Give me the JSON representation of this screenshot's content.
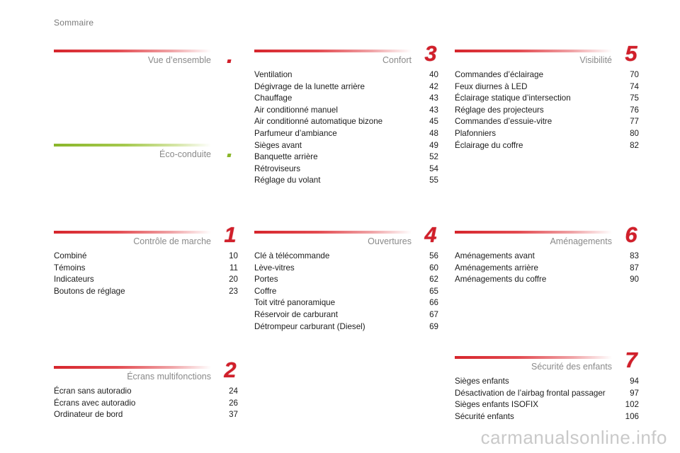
{
  "page": {
    "title": "Sommaire"
  },
  "sections": {
    "vue": {
      "title": "Vue d’ensemble"
    },
    "eco": {
      "title": "Éco-conduite"
    },
    "confort": {
      "title": "Confort",
      "number": "3",
      "entries": [
        {
          "label": "Ventilation",
          "page": "40"
        },
        {
          "label": "Dégivrage de la lunette arrière",
          "page": "42"
        },
        {
          "label": "Chauffage",
          "page": "43"
        },
        {
          "label": "Air conditionné manuel",
          "page": "43"
        },
        {
          "label": "Air conditionné automatique bizone",
          "page": "45"
        },
        {
          "label": "Parfumeur d’ambiance",
          "page": "48"
        },
        {
          "label": "Sièges avant",
          "page": "49"
        },
        {
          "label": "Banquette arrière",
          "page": "52"
        },
        {
          "label": "Rétroviseurs",
          "page": "54"
        },
        {
          "label": "Réglage du volant",
          "page": "55"
        }
      ]
    },
    "visibilite": {
      "title": "Visibilité",
      "number": "5",
      "entries": [
        {
          "label": "Commandes d’éclairage",
          "page": "70"
        },
        {
          "label": "Feux diurnes à LED",
          "page": "74"
        },
        {
          "label": "Éclairage statique d’intersection",
          "page": "75"
        },
        {
          "label": "Réglage des projecteurs",
          "page": "76"
        },
        {
          "label": "Commandes d’essuie-vitre",
          "page": "77"
        },
        {
          "label": "Plafonniers",
          "page": "80"
        },
        {
          "label": "Éclairage du coffre",
          "page": "82"
        }
      ]
    },
    "controle": {
      "title": "Contrôle de marche",
      "number": "1",
      "entries": [
        {
          "label": "Combiné",
          "page": "10"
        },
        {
          "label": "Témoins",
          "page": "11"
        },
        {
          "label": "Indicateurs",
          "page": "20"
        },
        {
          "label": "Boutons de réglage",
          "page": "23"
        }
      ]
    },
    "ouvertures": {
      "title": "Ouvertures",
      "number": "4",
      "entries": [
        {
          "label": "Clé à télécommande",
          "page": "56"
        },
        {
          "label": "Lève-vitres",
          "page": "60"
        },
        {
          "label": "Portes",
          "page": "62"
        },
        {
          "label": "Coffre",
          "page": "65"
        },
        {
          "label": "Toit vitré panoramique",
          "page": "66"
        },
        {
          "label": "Réservoir de carburant",
          "page": "67"
        },
        {
          "label": "Détrompeur carburant (Diesel)",
          "page": "69"
        }
      ]
    },
    "amenagements": {
      "title": "Aménagements",
      "number": "6",
      "entries": [
        {
          "label": "Aménagements avant",
          "page": "83"
        },
        {
          "label": "Aménagements arrière",
          "page": "87"
        },
        {
          "label": "Aménagements du coffre",
          "page": "90"
        }
      ]
    },
    "ecrans": {
      "title": "Écrans multifonctions",
      "number": "2",
      "entries": [
        {
          "label": "Écran sans autoradio",
          "page": "24"
        },
        {
          "label": "Écrans avec autoradio",
          "page": "26"
        },
        {
          "label": "Ordinateur de bord",
          "page": "37"
        }
      ]
    },
    "securite": {
      "title": "Sécurité des enfants",
      "number": "7",
      "entries": [
        {
          "label": "Sièges enfants",
          "page": "94"
        },
        {
          "label": "Désactivation de l’airbag frontal passager",
          "page": "97"
        },
        {
          "label": "Sièges enfants ISOFIX",
          "page": "102"
        },
        {
          "label": "Sécurité enfants",
          "page": "106"
        }
      ]
    }
  },
  "watermark": "carmanualsonline.info",
  "colors": {
    "accent_red": "#d11f2a",
    "accent_green": "#8ab62a",
    "heading_gray": "#8a8a8a"
  }
}
